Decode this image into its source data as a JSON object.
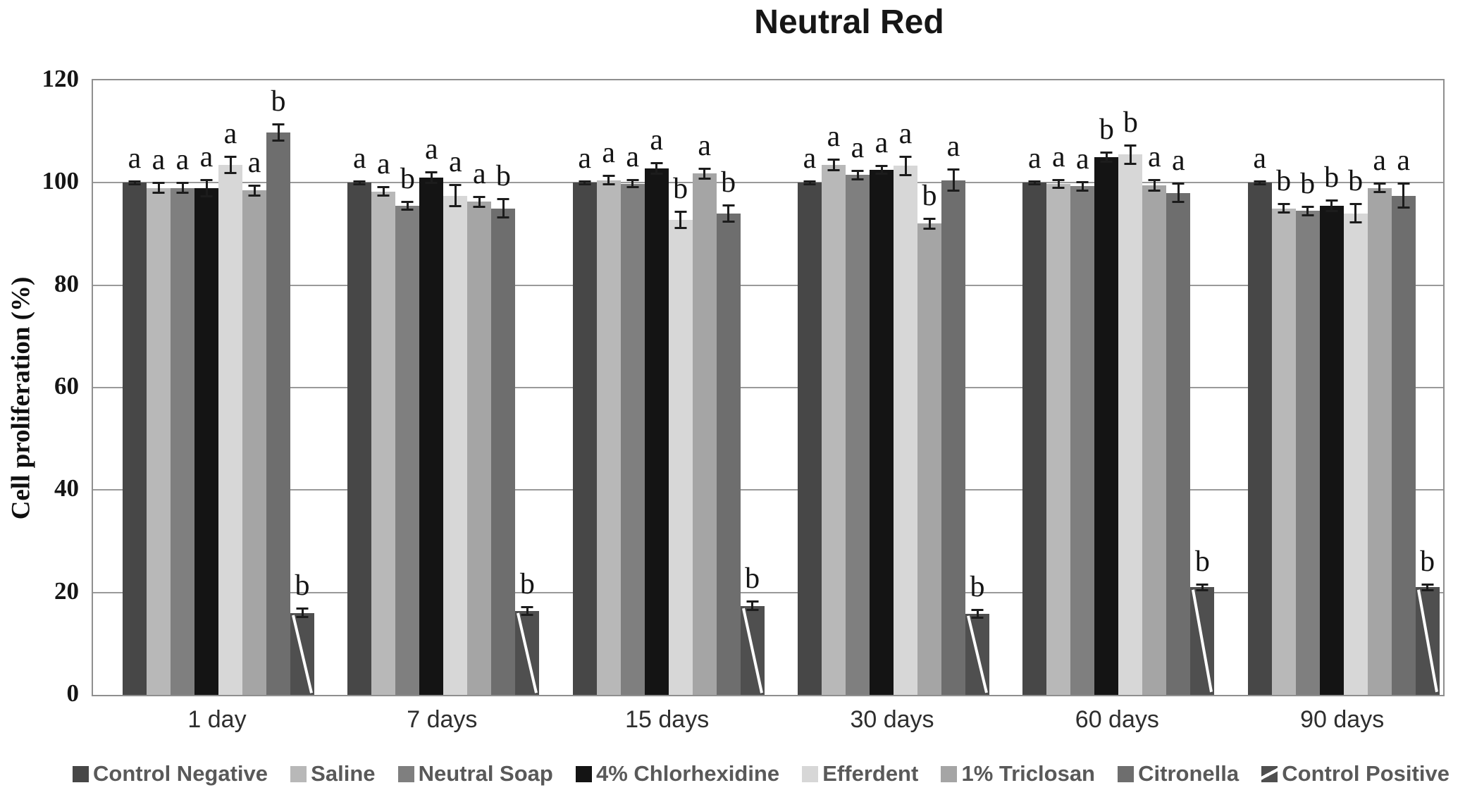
{
  "chart_data": {
    "type": "bar",
    "title": "Neutral Red",
    "xlabel": "",
    "ylabel": "Cell proliferation (%)",
    "ylim": [
      0,
      120
    ],
    "yticks": [
      0,
      20,
      40,
      60,
      80,
      100,
      120
    ],
    "grid": true,
    "legend_position": "bottom",
    "categories": [
      "1 day",
      "7 days",
      "15 days",
      "30 days",
      "60 days",
      "90 days"
    ],
    "series": [
      {
        "name": "Control Negative",
        "color": "#474747",
        "values": [
          100,
          100,
          100,
          100,
          100,
          100
        ],
        "errors": [
          0.5,
          0.5,
          0.5,
          0.5,
          0.5,
          0.5
        ],
        "letters": [
          "a",
          "a",
          "a",
          "a",
          "a",
          "a"
        ]
      },
      {
        "name": "Saline",
        "color": "#b8b8b8",
        "values": [
          99,
          98.3,
          100.5,
          103.5,
          99.8,
          95
        ],
        "errors": [
          1.2,
          1.0,
          1.0,
          1.2,
          1.0,
          1.0
        ],
        "letters": [
          "a",
          "a",
          "a",
          "a",
          "a",
          "b"
        ]
      },
      {
        "name": "Neutral Soap",
        "color": "#7f7f7f",
        "values": [
          99,
          95.5,
          99.8,
          101.5,
          99.3,
          94.5
        ],
        "errors": [
          1.2,
          1.0,
          0.9,
          1.0,
          1.0,
          1.0
        ],
        "letters": [
          "a",
          "b",
          "a",
          "a",
          "a",
          "b"
        ]
      },
      {
        "name": "4% Chlorhexidine",
        "color": "#141414",
        "values": [
          99,
          101,
          102.8,
          102.5,
          105,
          95.5
        ],
        "errors": [
          1.8,
          1.2,
          1.3,
          1.0,
          1.1,
          1.3
        ],
        "letters": [
          "a",
          "a",
          "a",
          "a",
          "b",
          "b"
        ]
      },
      {
        "name": "Efferdent",
        "color": "#d7d7d7",
        "values": [
          103.5,
          97.5,
          92.8,
          103.3,
          105.5,
          94
        ],
        "errors": [
          1.8,
          2.3,
          1.8,
          2.0,
          2.0,
          2.0
        ],
        "letters": [
          "a",
          "a",
          "b",
          "a",
          "b",
          "b"
        ]
      },
      {
        "name": "1% Triclosan",
        "color": "#a5a5a5",
        "values": [
          98.5,
          96.3,
          101.8,
          92,
          99.5,
          99
        ],
        "errors": [
          1.2,
          1.2,
          1.2,
          1.2,
          1.2,
          1.0
        ],
        "letters": [
          "a",
          "a",
          "a",
          "b",
          "a",
          "a"
        ]
      },
      {
        "name": "Citronella",
        "color": "#6e6e6e",
        "values": [
          109.8,
          95,
          94,
          100.5,
          98,
          97.5
        ],
        "errors": [
          1.8,
          2.0,
          1.8,
          2.3,
          2.0,
          2.5
        ],
        "letters": [
          "b",
          "b",
          "b",
          "a",
          "a",
          "a"
        ]
      },
      {
        "name": "Control Positive",
        "color": "#4f4f4f",
        "pattern": "diagonal-stripe",
        "values": [
          16,
          16.4,
          17.4,
          15.8,
          21,
          21
        ],
        "errors": [
          1.0,
          1.0,
          1.0,
          1.0,
          0.8,
          0.8
        ],
        "letters": [
          "b",
          "b",
          "b",
          "b",
          "b",
          "b"
        ]
      }
    ]
  }
}
